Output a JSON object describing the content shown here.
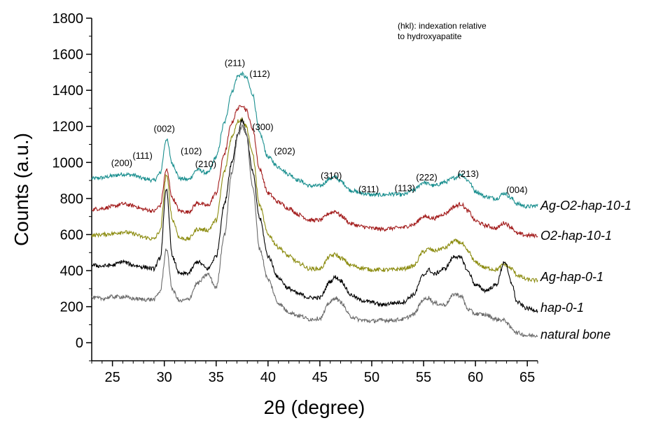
{
  "chart_data": {
    "type": "line",
    "xlabel": "2θ (degree)",
    "ylabel": "Counts (a.u.)",
    "xlim": [
      23,
      66
    ],
    "ylim": [
      -100,
      1800
    ],
    "xticks": [
      25,
      30,
      35,
      40,
      45,
      50,
      55,
      60,
      65
    ],
    "yticks": [
      0,
      200,
      400,
      600,
      800,
      1000,
      1200,
      1400,
      1600,
      1800
    ],
    "note": [
      "(hkl): indexation relative",
      "to hydroxyapatite"
    ],
    "peak_labels": [
      {
        "text": "(200)",
        "x": 25.9,
        "y": 980
      },
      {
        "text": "(111)",
        "x": 27.9,
        "y": 1020
      },
      {
        "text": "(002)",
        "x": 30.0,
        "y": 1170
      },
      {
        "text": "(102)",
        "x": 32.6,
        "y": 1045
      },
      {
        "text": "(210)",
        "x": 34.0,
        "y": 975
      },
      {
        "text": "(211)",
        "x": 36.8,
        "y": 1535
      },
      {
        "text": "(112)",
        "x": 39.2,
        "y": 1475
      },
      {
        "text": "(300)",
        "x": 39.5,
        "y": 1180
      },
      {
        "text": "(202)",
        "x": 41.6,
        "y": 1045
      },
      {
        "text": "(310)",
        "x": 46.1,
        "y": 910
      },
      {
        "text": "(311)",
        "x": 49.7,
        "y": 835
      },
      {
        "text": "(113)",
        "x": 53.2,
        "y": 840
      },
      {
        "text": "(222)",
        "x": 55.3,
        "y": 900
      },
      {
        "text": "(213)",
        "x": 59.3,
        "y": 920
      },
      {
        "text": "(004)",
        "x": 64.0,
        "y": 830
      }
    ],
    "series": [
      {
        "name": "Ag-O2-hap-10-1",
        "color": "#1a8f8f",
        "x": [
          23,
          24,
          25,
          26,
          27,
          28,
          29,
          29.6,
          30.2,
          30.8,
          31.5,
          32.3,
          33.2,
          34.2,
          35,
          35.8,
          36.5,
          37.1,
          37.5,
          37.9,
          38.5,
          39.2,
          40,
          41,
          42,
          43,
          44,
          45,
          46,
          46.5,
          47,
          48,
          49,
          50,
          51,
          52,
          53,
          54,
          55,
          55.5,
          56,
          57,
          58,
          58.6,
          59.3,
          60,
          61,
          62,
          62.8,
          63.5,
          64,
          65,
          66
        ],
        "values": [
          910,
          915,
          925,
          935,
          930,
          910,
          900,
          940,
          1130,
          990,
          910,
          905,
          960,
          940,
          1030,
          1220,
          1390,
          1480,
          1490,
          1470,
          1380,
          1160,
          1030,
          975,
          935,
          900,
          870,
          870,
          910,
          920,
          895,
          845,
          830,
          820,
          820,
          825,
          820,
          845,
          890,
          880,
          870,
          890,
          915,
          935,
          900,
          840,
          810,
          800,
          830,
          800,
          770,
          755,
          760
        ]
      },
      {
        "name": "O2-hap-10-1",
        "color": "#a31d1d",
        "x": [
          23,
          24,
          25,
          26,
          27,
          28,
          29,
          29.6,
          30.2,
          30.8,
          31.5,
          32.3,
          33.2,
          34.2,
          35,
          35.8,
          36.5,
          37.1,
          37.5,
          37.9,
          38.5,
          39.2,
          40,
          41,
          42,
          43,
          44,
          45,
          46,
          46.5,
          47,
          48,
          49,
          50,
          51,
          52,
          53,
          54,
          55,
          55.5,
          56,
          57,
          58,
          58.6,
          59.3,
          60,
          61,
          62,
          62.8,
          63.5,
          64,
          65,
          66
        ],
        "values": [
          740,
          745,
          755,
          770,
          760,
          740,
          730,
          760,
          960,
          800,
          730,
          725,
          775,
          760,
          830,
          1050,
          1220,
          1300,
          1320,
          1290,
          1190,
          960,
          830,
          780,
          745,
          710,
          680,
          680,
          720,
          730,
          705,
          660,
          645,
          635,
          630,
          635,
          640,
          655,
          700,
          695,
          690,
          715,
          755,
          770,
          730,
          675,
          650,
          635,
          665,
          640,
          605,
          595,
          595
        ]
      },
      {
        "name": "Ag-hap-0-1",
        "color": "#8c8c10",
        "x": [
          23,
          24,
          25,
          26,
          27,
          28,
          29,
          29.6,
          30.2,
          30.8,
          31.5,
          32.3,
          33.2,
          34.2,
          35,
          35.8,
          36.5,
          37.1,
          37.5,
          37.9,
          38.5,
          39.2,
          40,
          41,
          42,
          43,
          44,
          45,
          46,
          46.5,
          47,
          48,
          49,
          50,
          51,
          52,
          53,
          54,
          55,
          55.5,
          56,
          57,
          58,
          58.6,
          59.3,
          60,
          61,
          62,
          62.8,
          63.5,
          64,
          65,
          66
        ],
        "values": [
          595,
          600,
          605,
          615,
          605,
          585,
          575,
          620,
          930,
          680,
          580,
          575,
          630,
          625,
          680,
          950,
          1140,
          1230,
          1240,
          1200,
          1050,
          760,
          600,
          530,
          480,
          440,
          410,
          410,
          480,
          490,
          470,
          430,
          415,
          405,
          405,
          405,
          410,
          425,
          505,
          520,
          510,
          525,
          565,
          555,
          505,
          445,
          415,
          405,
          435,
          410,
          375,
          350,
          345
        ]
      },
      {
        "name": "hap-0-1",
        "color": "#000000",
        "x": [
          23,
          24,
          25,
          26,
          27,
          28,
          29,
          29.6,
          30.2,
          30.8,
          31.5,
          32.3,
          33.2,
          34.2,
          35,
          35.8,
          36.5,
          37.1,
          37.5,
          37.9,
          38.5,
          39.2,
          40,
          41,
          42,
          43,
          44,
          45,
          46,
          46.5,
          47,
          48,
          49,
          50,
          51,
          52,
          53,
          54,
          55,
          55.5,
          56,
          57,
          58,
          58.6,
          59.3,
          60,
          61,
          62,
          62.8,
          63.5,
          64,
          65,
          66
        ],
        "values": [
          430,
          425,
          430,
          450,
          430,
          420,
          410,
          470,
          850,
          470,
          380,
          385,
          450,
          410,
          480,
          770,
          1000,
          1160,
          1240,
          1160,
          950,
          690,
          480,
          360,
          300,
          270,
          250,
          250,
          340,
          365,
          345,
          265,
          235,
          225,
          210,
          220,
          225,
          265,
          375,
          405,
          380,
          410,
          480,
          470,
          395,
          320,
          290,
          320,
          450,
          330,
          225,
          190,
          180
        ]
      },
      {
        "name": "natural bone",
        "color": "#6b6b6b",
        "x": [
          23,
          24,
          25,
          26,
          27,
          28,
          29,
          29.6,
          30.2,
          30.8,
          31.5,
          32.3,
          33.2,
          34.2,
          35,
          35.8,
          36.5,
          37.1,
          37.5,
          37.9,
          38.5,
          39.2,
          40,
          41,
          42,
          43,
          44,
          45,
          46,
          46.5,
          47,
          48,
          49,
          50,
          51,
          52,
          53,
          54,
          55,
          55.5,
          56,
          57,
          58,
          58.6,
          59.3,
          60,
          61,
          62,
          62.8,
          63.5,
          64,
          65,
          66
        ],
        "values": [
          250,
          245,
          255,
          255,
          245,
          240,
          240,
          285,
          520,
          290,
          230,
          240,
          330,
          380,
          305,
          600,
          940,
          1150,
          1200,
          1160,
          870,
          520,
          350,
          220,
          170,
          150,
          130,
          135,
          225,
          250,
          225,
          145,
          125,
          120,
          125,
          125,
          130,
          155,
          240,
          250,
          220,
          210,
          270,
          260,
          185,
          160,
          155,
          130,
          125,
          80,
          55,
          40,
          40
        ]
      }
    ],
    "series_label_y": [
      760,
      595,
      365,
      195,
      45
    ]
  }
}
